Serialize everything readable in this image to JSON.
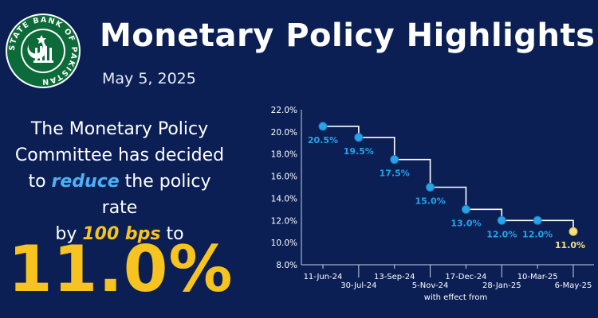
{
  "header": {
    "title": "Monetary Policy Highlights",
    "date": "May 5, 2025"
  },
  "logo": {
    "text": "STATE BANK OF PAKISTAN"
  },
  "message": {
    "line1": "The Monetary Policy",
    "line2": "Committee has decided",
    "line3_pre": "to ",
    "line3_em": "reduce",
    "line3_post": " the policy rate",
    "line4_pre": "by ",
    "line4_em": "100 bps",
    "line4_post": " to"
  },
  "new_rate": "11.0%",
  "colors": {
    "background": "#0b1f55",
    "point": "#29a3e8",
    "highlight": "#f7e07a",
    "accent_gold": "#f7c31e",
    "accent_blue": "#4db2f5",
    "label_blue": "#29a3e8"
  },
  "chart_data": {
    "type": "line",
    "step": true,
    "xlabel": "with effect from",
    "ylabel": "",
    "ylim": [
      8.0,
      22.0
    ],
    "yticks": [
      "8.0%",
      "10.0%",
      "12.0%",
      "14.0%",
      "16.0%",
      "18.0%",
      "20.0%",
      "22.0%"
    ],
    "grid": false,
    "x": [
      "11-Jun-24",
      "30-Jul-24",
      "13-Sep-24",
      "5-Nov-24",
      "17-Dec-24",
      "28-Jan-25",
      "10-Mar-25",
      "6-May-25"
    ],
    "values": [
      20.5,
      19.5,
      17.5,
      15.0,
      13.0,
      12.0,
      12.0,
      11.0
    ],
    "labels": [
      "20.5%",
      "19.5%",
      "17.5%",
      "15.0%",
      "13.0%",
      "12.0%",
      "12.0%",
      "11.0%"
    ]
  }
}
